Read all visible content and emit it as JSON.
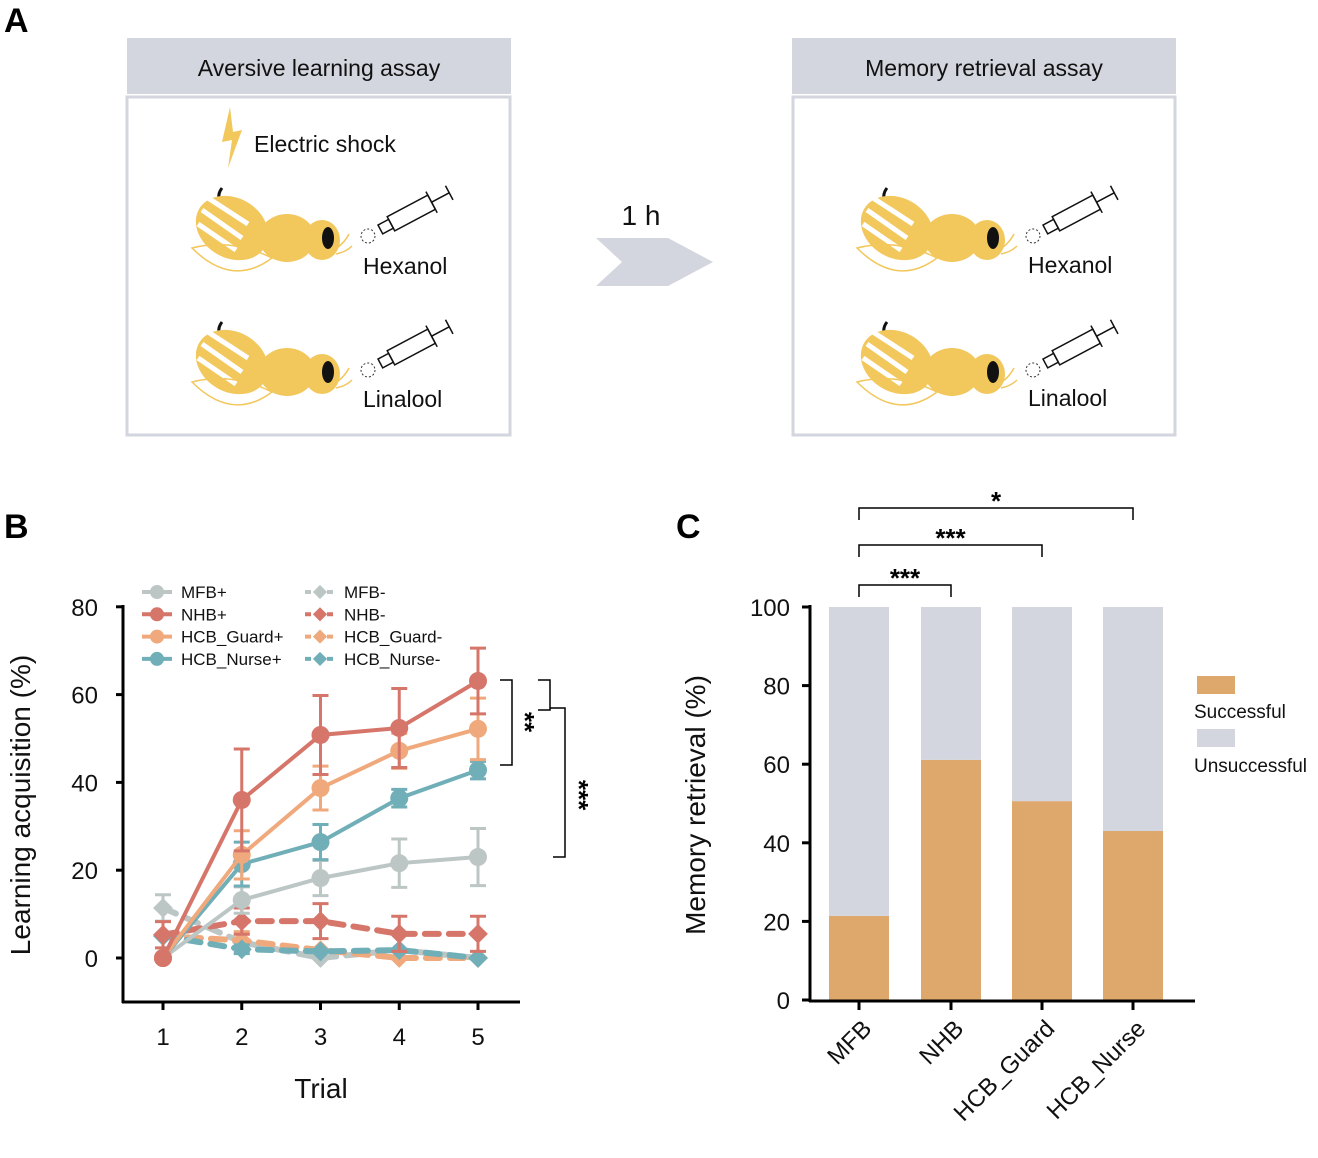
{
  "panel_labels": {
    "a": "A",
    "b": "B",
    "c": "C"
  },
  "panel_a": {
    "left_title": "Aversive learning assay",
    "right_title": "Memory retrieval assay",
    "shock_label": "Electric shock",
    "odor1": "Hexanol",
    "odor2": "Linalool",
    "delay_label": "1 h",
    "icons": [
      "lightning-icon",
      "bee-icon",
      "syringe-icon",
      "arrow-icon"
    ],
    "colors": {
      "header": "#D3D6DE",
      "bee": "#F2C75C"
    }
  },
  "chart_data": [
    {
      "type": "line",
      "xlabel": "Trial",
      "ylabel": "Learning acquisition (%)",
      "x": [
        1,
        2,
        3,
        4,
        5
      ],
      "xticks": [
        "1",
        "2",
        "3",
        "4",
        "5"
      ],
      "yticks": [
        "0",
        "20",
        "40",
        "60",
        "80"
      ],
      "ylim": [
        -10,
        80
      ],
      "legend": "top-left",
      "series": [
        {
          "name": "MFB+",
          "color": "#BCC6C5",
          "dash": false,
          "marker": "circle",
          "values": [
            0,
            13.2,
            18.2,
            21.6,
            23.0
          ],
          "error": [
            0,
            3,
            4,
            5.5,
            6.5
          ]
        },
        {
          "name": "NHB+",
          "color": "#D6756A",
          "dash": false,
          "marker": "circle",
          "values": [
            0,
            36.0,
            50.8,
            52.4,
            63.1
          ],
          "error": [
            0,
            11.6,
            9,
            9,
            7.5
          ]
        },
        {
          "name": "HCB_Guard+",
          "color": "#F0A97C",
          "dash": false,
          "marker": "circle",
          "values": [
            0,
            23.5,
            38.7,
            47.2,
            52.2
          ],
          "error": [
            0,
            5.5,
            5,
            4,
            7
          ]
        },
        {
          "name": "HCB_Nurse+",
          "color": "#70AEB8",
          "dash": false,
          "marker": "circle",
          "values": [
            0,
            21.4,
            26.4,
            36.4,
            42.8
          ],
          "error": [
            0,
            5,
            4,
            2,
            2
          ]
        },
        {
          "name": "MFB-",
          "color": "#BCC6C5",
          "dash": true,
          "marker": "diamond",
          "values": [
            11.4,
            3.6,
            0,
            1.8,
            0
          ],
          "error": [
            3,
            2,
            0,
            0,
            0
          ]
        },
        {
          "name": "NHB-",
          "color": "#D6756A",
          "dash": true,
          "marker": "diamond",
          "values": [
            5.3,
            8.4,
            8.4,
            5.5,
            5.5
          ],
          "error": [
            3,
            3,
            4,
            4,
            4
          ]
        },
        {
          "name": "HCB_Guard-",
          "color": "#F0A97C",
          "dash": true,
          "marker": "diamond",
          "values": [
            5,
            4,
            1.8,
            0,
            0
          ],
          "error": [
            0,
            2,
            0,
            0,
            0
          ]
        },
        {
          "name": "HCB_Nurse-",
          "color": "#70AEB8",
          "dash": true,
          "marker": "diamond",
          "values": [
            5,
            2,
            1.5,
            1.8,
            0
          ],
          "error": [
            0,
            1,
            0,
            0,
            0
          ]
        }
      ],
      "annotations": [
        "**",
        "***"
      ]
    },
    {
      "type": "bar",
      "stacked": true,
      "ylabel": "Memory retrieval (%)",
      "categories": [
        "MFB",
        "NHB",
        "HCB_Guard",
        "HCB_Nurse"
      ],
      "yticks": [
        "0",
        "20",
        "40",
        "60",
        "80",
        "100"
      ],
      "ylim": [
        0,
        100
      ],
      "legend": "right",
      "series": [
        {
          "name": "Successful",
          "color": "#DEA86D",
          "values": [
            21.4,
            61.1,
            50.6,
            43.0
          ]
        },
        {
          "name": "Unsuccessful",
          "color": "#D3D6DE",
          "values": [
            78.6,
            38.9,
            49.4,
            57.0
          ]
        }
      ],
      "annotations": [
        {
          "pair": [
            "MFB",
            "NHB"
          ],
          "label": "***"
        },
        {
          "pair": [
            "MFB",
            "HCB_Guard"
          ],
          "label": "***"
        },
        {
          "pair": [
            "MFB",
            "HCB_Nurse"
          ],
          "label": "*"
        }
      ]
    }
  ]
}
